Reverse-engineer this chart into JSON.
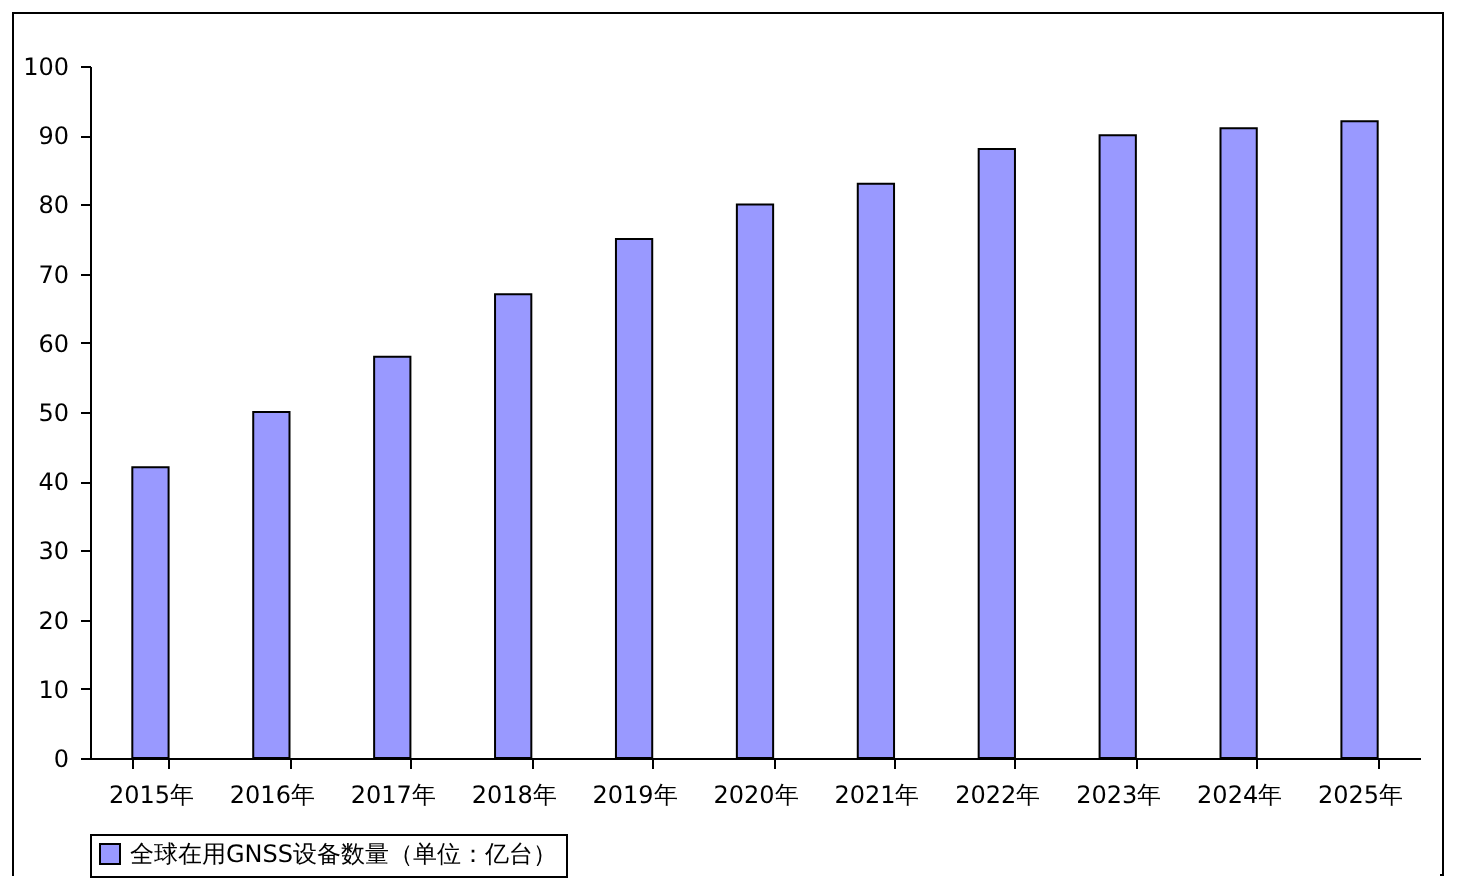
{
  "chart_data": {
    "type": "bar",
    "categories": [
      "2015年",
      "2016年",
      "2017年",
      "2018年",
      "2019年",
      "2020年",
      "2021年",
      "2022年",
      "2023年",
      "2024年",
      "2025年"
    ],
    "series": [
      {
        "name": "全球在用GNSS设备数量（单位：亿台）",
        "color": "#9999ff",
        "values": [
          42,
          50,
          58,
          67,
          75,
          80,
          83,
          88,
          90,
          91,
          92
        ]
      }
    ],
    "ylim": [
      0,
      100
    ],
    "yticks": [
      0,
      10,
      20,
      30,
      40,
      50,
      60,
      70,
      80,
      90,
      100
    ],
    "grid": false,
    "legend": "bottom"
  }
}
